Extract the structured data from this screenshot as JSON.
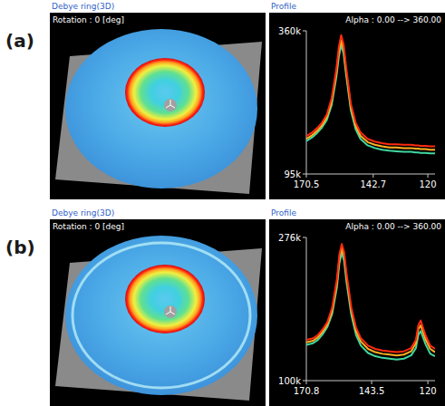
{
  "chart_data": [
    {
      "type": "line",
      "panel_label": "(a)",
      "image_title": "Debye ring(3D)",
      "image_subtitle": "Rotation : 0 [deg]",
      "title": "Profile",
      "subtitle": "Alpha : 0.00 --> 360.00",
      "x": [
        170.5,
        168,
        166,
        164,
        162,
        160,
        158,
        157,
        156,
        155,
        154,
        152,
        150,
        148,
        145,
        142,
        139,
        136,
        133,
        130,
        127,
        125,
        124,
        123,
        121,
        119,
        117
      ],
      "xlim": [
        170.5,
        117
      ],
      "xticks": [
        170.5,
        142.7,
        120
      ],
      "ylim": [
        95000,
        360000
      ],
      "yticks": [
        {
          "value": 95000,
          "label": "95k"
        },
        {
          "value": 360000,
          "label": "360k"
        }
      ],
      "series": [
        {
          "color": "#ff2a10",
          "values": [
            165000,
            172000,
            180000,
            190000,
            205000,
            235000,
            290000,
            330000,
            352000,
            335000,
            295000,
            225000,
            190000,
            172000,
            160000,
            155000,
            152000,
            150000,
            150000,
            149000,
            149000,
            148000,
            148000,
            147000,
            147000,
            146000,
            146000
          ]
        },
        {
          "color": "#ffb020",
          "values": [
            160000,
            167000,
            175000,
            185000,
            200000,
            228000,
            282000,
            320000,
            342000,
            326000,
            287000,
            219000,
            184000,
            166000,
            154000,
            149000,
            146000,
            144000,
            144000,
            143000,
            143000,
            142000,
            142000,
            141000,
            141000,
            140000,
            140000
          ]
        },
        {
          "color": "#40d8a0",
          "values": [
            156000,
            163000,
            171000,
            181000,
            195000,
            222000,
            275000,
            312000,
            334000,
            318000,
            280000,
            213000,
            178000,
            160000,
            148000,
            143000,
            140000,
            138000,
            137000,
            136000,
            136000,
            135000,
            135000,
            134000,
            134000,
            133000,
            133000
          ]
        }
      ]
    },
    {
      "type": "line",
      "panel_label": "(b)",
      "image_title": "Debye ring(3D)",
      "image_subtitle": "Rotation : 0 [deg]",
      "title": "Profile",
      "subtitle": "Alpha : 0.00 --> 360.00",
      "x": [
        170.8,
        168,
        166,
        164,
        162,
        160,
        158,
        157,
        156,
        155,
        154,
        152,
        150,
        148,
        145,
        142,
        139,
        136,
        133,
        130,
        127,
        125,
        124,
        123,
        121,
        119,
        117
      ],
      "xlim": [
        170.8,
        117
      ],
      "xticks": [
        170.8,
        143.5,
        120
      ],
      "ylim": [
        100000,
        276000
      ],
      "yticks": [
        {
          "value": 100000,
          "label": "100k"
        },
        {
          "value": 276000,
          "label": "276k"
        }
      ],
      "series": [
        {
          "color": "#ff2a10",
          "values": [
            150000,
            152000,
            156000,
            163000,
            172000,
            190000,
            225000,
            255000,
            268000,
            258000,
            232000,
            190000,
            165000,
            152000,
            143000,
            139000,
            137000,
            136000,
            135000,
            136000,
            140000,
            150000,
            168000,
            174000,
            156000,
            143000,
            139000
          ]
        },
        {
          "color": "#ffb020",
          "values": [
            147000,
            149000,
            153000,
            160000,
            169000,
            186000,
            220000,
            250000,
            263000,
            253000,
            227000,
            186000,
            161000,
            148000,
            139000,
            135000,
            133000,
            132000,
            131000,
            132000,
            136000,
            146000,
            163000,
            168000,
            151000,
            139000,
            135000
          ]
        },
        {
          "color": "#40d8a0",
          "values": [
            144000,
            146000,
            150000,
            157000,
            166000,
            182000,
            215000,
            244000,
            257000,
            247000,
            221000,
            181000,
            156000,
            143000,
            134000,
            130000,
            128000,
            127000,
            126000,
            127000,
            131000,
            140000,
            156000,
            161000,
            145000,
            133000,
            130000
          ]
        }
      ]
    }
  ]
}
